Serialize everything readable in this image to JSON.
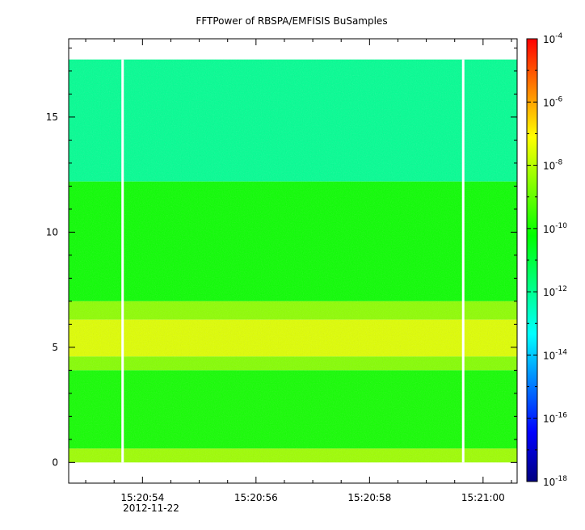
{
  "chart_data": {
    "type": "heatmap",
    "title": "FFTPower of RBSPA/EMFISIS  BuSamples",
    "x_axis": {
      "kind": "time",
      "ticks": [
        "15:20:54",
        "15:20:56",
        "15:20:58",
        "15:21:00"
      ],
      "date_label": "2012-11-22",
      "range": [
        "15:20:52.7",
        "15:21:00.6"
      ]
    },
    "y_axis": {
      "ticks": [
        "0",
        "5",
        "10",
        "15"
      ],
      "tick_values": [
        0,
        5,
        10,
        15
      ],
      "range": [
        -0.9,
        18.4
      ]
    },
    "data_extent_y": [
      0,
      17.5
    ],
    "colorbar": {
      "scale": "log",
      "range": [
        1e-18,
        0.0001
      ],
      "tick_base": "10",
      "tick_exponents": [
        "-4",
        "-6",
        "-8",
        "-10",
        "-12",
        "-14",
        "-16",
        "-18"
      ],
      "colormap": [
        "#000080",
        "#0000ff",
        "#0080ff",
        "#00ffff",
        "#00ff80",
        "#00ff00",
        "#80ff00",
        "#ffff00",
        "#ff8000",
        "#ff0000"
      ]
    },
    "spectral_bands": [
      {
        "y_range": [
          12.2,
          17.5
        ],
        "log_power": -12.0
      },
      {
        "y_range": [
          7.0,
          12.2
        ],
        "log_power": -10.1
      },
      {
        "y_range": [
          6.2,
          7.0
        ],
        "log_power": -8.5
      },
      {
        "y_range": [
          4.6,
          6.2
        ],
        "log_power": -7.5
      },
      {
        "y_range": [
          4.0,
          4.6
        ],
        "log_power": -8.6
      },
      {
        "y_range": [
          0.6,
          4.0
        ],
        "log_power": -10.0
      },
      {
        "y_range": [
          0.0,
          0.6
        ],
        "log_power": -8.3
      }
    ],
    "data_gaps": [
      "15:20:53.65",
      "15:20:59.65"
    ]
  }
}
